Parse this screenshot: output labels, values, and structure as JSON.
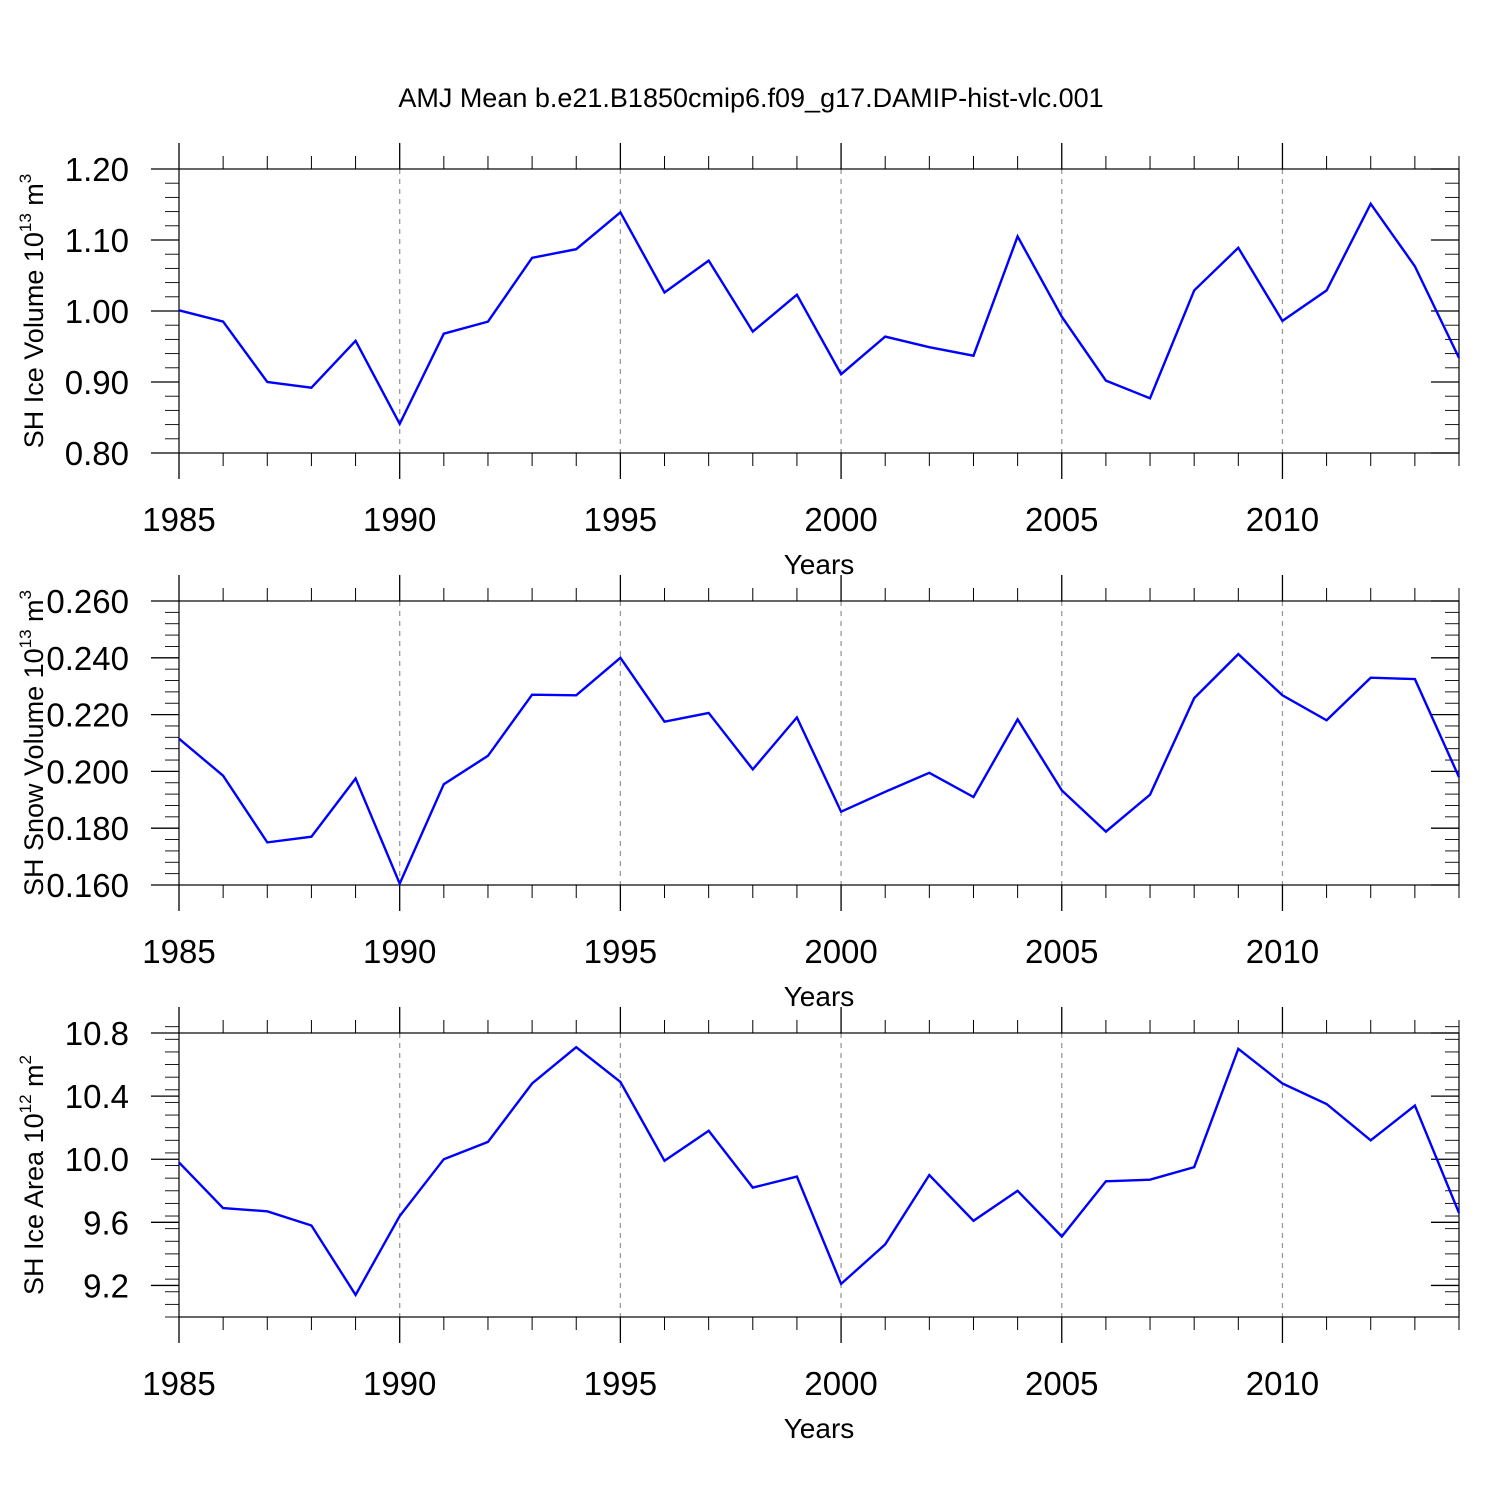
{
  "title": "AMJ Mean b.e21.B1850cmip6.f09_g17.DAMIP-hist-vlc.001",
  "chart_data": [
    {
      "type": "line",
      "ylabel": {
        "prefix": "SH Ice Volume 10",
        "exponent": "13",
        "unit": " m",
        "unit_exponent": "3"
      },
      "xlabel": "Years",
      "xlim": [
        1985,
        2014
      ],
      "ylim": [
        0.8,
        1.2
      ],
      "y_ticks": [
        "0.80",
        "0.90",
        "1.00",
        "1.10",
        "1.20"
      ],
      "y_minor_step": 0.02,
      "x_ticks": [
        "1985",
        "1990",
        "1995",
        "2000",
        "2005",
        "2010"
      ],
      "color": "#0000ff",
      "series": [
        {
          "name": "SH Ice Volume",
          "x": [
            1985,
            1986,
            1987,
            1988,
            1989,
            1990,
            1991,
            1992,
            1993,
            1994,
            1995,
            1996,
            1997,
            1998,
            1999,
            2000,
            2001,
            2002,
            2003,
            2004,
            2005,
            2006,
            2007,
            2008,
            2009,
            2010,
            2011,
            2012,
            2013,
            2014
          ],
          "values": [
            1.001,
            0.985,
            0.9,
            0.892,
            0.958,
            0.841,
            0.968,
            0.985,
            1.075,
            1.087,
            1.139,
            1.026,
            1.071,
            0.971,
            1.023,
            0.911,
            0.964,
            0.949,
            0.937,
            1.105,
            0.992,
            0.902,
            0.877,
            1.029,
            1.089,
            0.986,
            1.029,
            1.151,
            1.063,
            0.934
          ]
        }
      ]
    },
    {
      "type": "line",
      "ylabel": {
        "prefix": "SH Snow Volume 10",
        "exponent": "13",
        "unit": " m",
        "unit_exponent": "3"
      },
      "xlabel": "Years",
      "xlim": [
        1985,
        2014
      ],
      "ylim": [
        0.16,
        0.26
      ],
      "y_ticks": [
        "0.160",
        "0.180",
        "0.200",
        "0.220",
        "0.240",
        "0.260"
      ],
      "y_minor_step": 0.004,
      "x_ticks": [
        "1985",
        "1990",
        "1995",
        "2000",
        "2005",
        "2010"
      ],
      "color": "#0000ff",
      "series": [
        {
          "name": "SH Snow Volume",
          "x": [
            1985,
            1986,
            1987,
            1988,
            1989,
            1990,
            1991,
            1992,
            1993,
            1994,
            1995,
            1996,
            1997,
            1998,
            1999,
            2000,
            2001,
            2002,
            2003,
            2004,
            2005,
            2006,
            2007,
            2008,
            2009,
            2010,
            2011,
            2012,
            2013,
            2014
          ],
          "values": [
            0.2115,
            0.1985,
            0.175,
            0.177,
            0.1975,
            0.1605,
            0.1955,
            0.2055,
            0.227,
            0.2268,
            0.24,
            0.2175,
            0.2206,
            0.2007,
            0.219,
            0.1858,
            0.1928,
            0.1995,
            0.191,
            0.2183,
            0.1933,
            0.1788,
            0.1918,
            0.2258,
            0.2413,
            0.2268,
            0.218,
            0.233,
            0.2325,
            0.198
          ]
        }
      ]
    },
    {
      "type": "line",
      "ylabel": {
        "prefix": "SH Ice Area 10",
        "exponent": "12",
        "unit": " m",
        "unit_exponent": "2"
      },
      "xlabel": "Years",
      "xlim": [
        1985,
        2014
      ],
      "ylim": [
        9.0,
        10.8
      ],
      "y_ticks": [
        "9.2",
        "9.6",
        "10.0",
        "10.4",
        "10.8"
      ],
      "y_minor_step": 0.08,
      "x_ticks": [
        "1985",
        "1990",
        "1995",
        "2000",
        "2005",
        "2010"
      ],
      "color": "#0000ff",
      "series": [
        {
          "name": "SH Ice Area",
          "x": [
            1985,
            1986,
            1987,
            1988,
            1989,
            1990,
            1991,
            1992,
            1993,
            1994,
            1995,
            1996,
            1997,
            1998,
            1999,
            2000,
            2001,
            2002,
            2003,
            2004,
            2005,
            2006,
            2007,
            2008,
            2009,
            2010,
            2011,
            2012,
            2013,
            2014
          ],
          "values": [
            9.98,
            9.69,
            9.67,
            9.58,
            9.14,
            9.64,
            10.0,
            10.11,
            10.48,
            10.71,
            10.49,
            9.99,
            10.18,
            9.82,
            9.89,
            9.21,
            9.46,
            9.9,
            9.61,
            9.8,
            9.51,
            9.86,
            9.87,
            9.95,
            10.7,
            10.48,
            10.35,
            10.12,
            10.34,
            9.66
          ]
        }
      ]
    }
  ]
}
